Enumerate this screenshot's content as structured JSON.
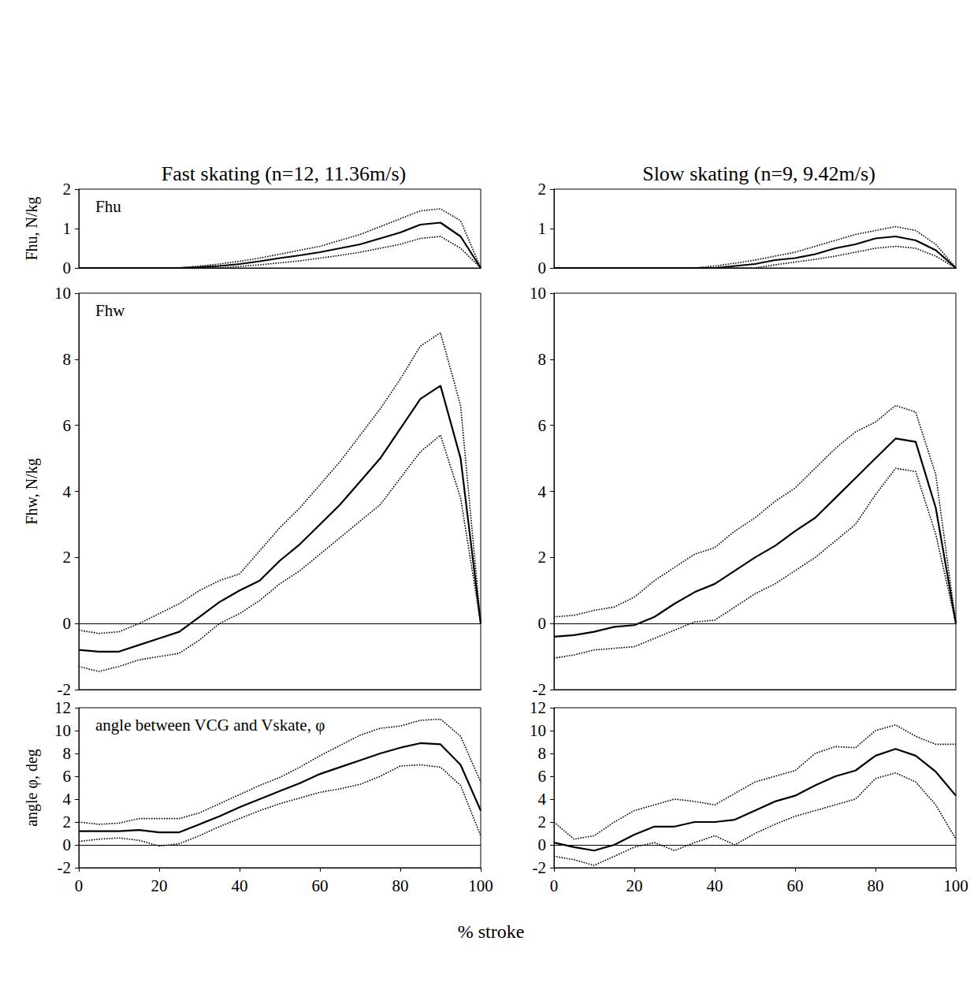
{
  "xlabel": "% stroke",
  "chart_data": [
    {
      "type": "line",
      "subtitle": "Fast skating (n=12, 11.36m/s)",
      "title": "Fhu",
      "ylabel": "Fhu, N/kg",
      "x": [
        0,
        5,
        10,
        15,
        20,
        25,
        30,
        35,
        40,
        45,
        50,
        55,
        60,
        65,
        70,
        75,
        80,
        85,
        90,
        95,
        100
      ],
      "xlim": [
        0,
        100
      ],
      "ylim": [
        0,
        2
      ],
      "yticks": [
        0,
        1,
        2
      ],
      "tick_labels": "y",
      "series": [
        {
          "color": "#000000",
          "line_style": "solid",
          "values": [
            0,
            0,
            0,
            0,
            0,
            0,
            0.02,
            0.05,
            0.1,
            0.17,
            0.25,
            0.32,
            0.4,
            0.5,
            0.6,
            0.75,
            0.9,
            1.1,
            1.15,
            0.8,
            0
          ]
        },
        {
          "color": "#000000",
          "line_style": "dotted",
          "values": [
            0,
            0,
            0,
            0,
            0,
            0,
            0.05,
            0.1,
            0.17,
            0.25,
            0.35,
            0.45,
            0.55,
            0.7,
            0.85,
            1.05,
            1.25,
            1.45,
            1.5,
            1.2,
            0
          ]
        },
        {
          "color": "#000000",
          "line_style": "dotted",
          "values": [
            0,
            0,
            0,
            0,
            0,
            0,
            0,
            0,
            0.04,
            0.08,
            0.13,
            0.18,
            0.25,
            0.32,
            0.4,
            0.5,
            0.6,
            0.75,
            0.8,
            0.5,
            0
          ]
        }
      ]
    },
    {
      "type": "line",
      "title": "Fhw",
      "ylabel": "Fhw, N/kg",
      "x": [
        0,
        5,
        10,
        15,
        20,
        25,
        30,
        35,
        40,
        45,
        50,
        55,
        60,
        65,
        70,
        75,
        80,
        85,
        90,
        95,
        100
      ],
      "xlim": [
        0,
        100
      ],
      "ylim": [
        -2,
        10
      ],
      "yticks": [
        -2,
        0,
        2,
        4,
        6,
        8,
        10
      ],
      "tick_labels": "y",
      "series": [
        {
          "color": "#000000",
          "line_style": "solid",
          "values": [
            -0.8,
            -0.85,
            -0.85,
            -0.65,
            -0.45,
            -0.25,
            0.2,
            0.65,
            1.0,
            1.3,
            1.9,
            2.4,
            3.0,
            3.6,
            4.3,
            5.0,
            5.9,
            6.8,
            7.2,
            5.0,
            0
          ]
        },
        {
          "color": "#000000",
          "line_style": "dotted",
          "values": [
            -0.2,
            -0.3,
            -0.25,
            0,
            0.3,
            0.6,
            1.0,
            1.3,
            1.5,
            2.2,
            2.9,
            3.5,
            4.2,
            4.9,
            5.7,
            6.5,
            7.4,
            8.4,
            8.8,
            6.6,
            0
          ]
        },
        {
          "color": "#000000",
          "line_style": "dotted",
          "values": [
            -1.3,
            -1.45,
            -1.3,
            -1.1,
            -1.0,
            -0.9,
            -0.5,
            0,
            0.3,
            0.7,
            1.2,
            1.6,
            2.1,
            2.6,
            3.1,
            3.6,
            4.4,
            5.2,
            5.7,
            3.8,
            0
          ]
        }
      ]
    },
    {
      "type": "line",
      "title": "angle between VCG and Vskate, φ",
      "ylabel": "angle φ, deg",
      "x": [
        0,
        5,
        10,
        15,
        20,
        25,
        30,
        35,
        40,
        45,
        50,
        55,
        60,
        65,
        70,
        75,
        80,
        85,
        90,
        95,
        100
      ],
      "xlim": [
        0,
        100
      ],
      "xticks": [
        0,
        20,
        40,
        60,
        80,
        100
      ],
      "ylim": [
        -2,
        12
      ],
      "yticks": [
        -2,
        0,
        2,
        4,
        6,
        8,
        10,
        12
      ],
      "series": [
        {
          "color": "#000000",
          "line_style": "solid",
          "values": [
            1.2,
            1.2,
            1.2,
            1.3,
            1.1,
            1.1,
            1.8,
            2.5,
            3.3,
            4.0,
            4.7,
            5.4,
            6.2,
            6.8,
            7.4,
            8.0,
            8.5,
            8.9,
            8.8,
            7.0,
            3.0
          ]
        },
        {
          "color": "#000000",
          "line_style": "dotted",
          "values": [
            2.0,
            1.8,
            1.9,
            2.3,
            2.3,
            2.3,
            2.8,
            3.6,
            4.4,
            5.2,
            5.9,
            6.8,
            7.8,
            8.7,
            9.6,
            10.2,
            10.4,
            10.9,
            11.0,
            9.5,
            5.5
          ]
        },
        {
          "color": "#000000",
          "line_style": "dotted",
          "values": [
            0.3,
            0.5,
            0.6,
            0.4,
            -0.1,
            0.1,
            0.8,
            1.6,
            2.3,
            3.0,
            3.6,
            4.1,
            4.6,
            4.9,
            5.3,
            6.0,
            6.9,
            7.0,
            6.8,
            5.2,
            0.8
          ]
        }
      ]
    },
    {
      "type": "line",
      "subtitle": "Slow skating (n=9, 9.42m/s)",
      "x": [
        0,
        5,
        10,
        15,
        20,
        25,
        30,
        35,
        40,
        45,
        50,
        55,
        60,
        65,
        70,
        75,
        80,
        85,
        90,
        95,
        100
      ],
      "xlim": [
        0,
        100
      ],
      "ylim": [
        0,
        2
      ],
      "yticks": [
        0,
        1,
        2
      ],
      "tick_labels": "y",
      "series": [
        {
          "color": "#000000",
          "line_style": "solid",
          "values": [
            0,
            0,
            0,
            0,
            0,
            0,
            0,
            0,
            0,
            0.05,
            0.1,
            0.2,
            0.25,
            0.35,
            0.5,
            0.6,
            0.75,
            0.8,
            0.7,
            0.45,
            0
          ]
        },
        {
          "color": "#000000",
          "line_style": "dotted",
          "values": [
            0,
            0,
            0,
            0,
            0,
            0,
            0,
            0,
            0.05,
            0.12,
            0.2,
            0.3,
            0.4,
            0.55,
            0.7,
            0.85,
            0.95,
            1.05,
            0.95,
            0.6,
            0
          ]
        },
        {
          "color": "#000000",
          "line_style": "dotted",
          "values": [
            0,
            0,
            0,
            0,
            0,
            0,
            0,
            0,
            0,
            0,
            0,
            0.08,
            0.15,
            0.22,
            0.3,
            0.4,
            0.5,
            0.55,
            0.5,
            0.3,
            0
          ]
        }
      ]
    },
    {
      "type": "line",
      "x": [
        0,
        5,
        10,
        15,
        20,
        25,
        30,
        35,
        40,
        45,
        50,
        55,
        60,
        65,
        70,
        75,
        80,
        85,
        90,
        95,
        100
      ],
      "xlim": [
        0,
        100
      ],
      "ylim": [
        -2,
        10
      ],
      "yticks": [
        -2,
        0,
        2,
        4,
        6,
        8,
        10
      ],
      "tick_labels": "y",
      "series": [
        {
          "color": "#000000",
          "line_style": "solid",
          "values": [
            -0.4,
            -0.35,
            -0.25,
            -0.1,
            -0.05,
            0.2,
            0.6,
            0.95,
            1.2,
            1.6,
            2.0,
            2.35,
            2.8,
            3.2,
            3.8,
            4.4,
            5.0,
            5.6,
            5.5,
            3.5,
            0
          ]
        },
        {
          "color": "#000000",
          "line_style": "dotted",
          "values": [
            0.2,
            0.25,
            0.4,
            0.5,
            0.8,
            1.3,
            1.7,
            2.1,
            2.3,
            2.8,
            3.2,
            3.7,
            4.1,
            4.7,
            5.3,
            5.8,
            6.1,
            6.6,
            6.4,
            4.5,
            0
          ]
        },
        {
          "color": "#000000",
          "line_style": "dotted",
          "values": [
            -1.05,
            -0.95,
            -0.8,
            -0.75,
            -0.7,
            -0.45,
            -0.2,
            0.05,
            0.1,
            0.5,
            0.9,
            1.2,
            1.6,
            2.0,
            2.5,
            3.0,
            3.9,
            4.7,
            4.6,
            2.7,
            0
          ]
        }
      ]
    },
    {
      "type": "line",
      "x": [
        0,
        5,
        10,
        15,
        20,
        25,
        30,
        35,
        40,
        45,
        50,
        55,
        60,
        65,
        70,
        75,
        80,
        85,
        90,
        95,
        100
      ],
      "xlim": [
        0,
        100
      ],
      "xticks": [
        0,
        20,
        40,
        60,
        80,
        100
      ],
      "ylim": [
        -2,
        12
      ],
      "yticks": [
        -2,
        0,
        2,
        4,
        6,
        8,
        10,
        12
      ],
      "series": [
        {
          "color": "#000000",
          "line_style": "solid",
          "values": [
            0.2,
            -0.2,
            -0.5,
            0,
            0.9,
            1.6,
            1.6,
            2.0,
            2.0,
            2.2,
            3.0,
            3.8,
            4.3,
            5.2,
            6.0,
            6.5,
            7.8,
            8.4,
            7.8,
            6.4,
            4.3
          ]
        },
        {
          "color": "#000000",
          "line_style": "dotted",
          "values": [
            2.0,
            0.5,
            0.8,
            2.0,
            3.0,
            3.5,
            4.0,
            3.8,
            3.5,
            4.5,
            5.5,
            6.0,
            6.5,
            8.0,
            8.6,
            8.5,
            10.0,
            10.5,
            9.5,
            8.8,
            8.8
          ]
        },
        {
          "color": "#000000",
          "line_style": "dotted",
          "values": [
            -1.0,
            -1.3,
            -1.8,
            -1.0,
            -0.2,
            0.2,
            -0.5,
            0.2,
            0.8,
            0,
            1.0,
            1.8,
            2.5,
            3.0,
            3.5,
            4.0,
            5.8,
            6.3,
            5.5,
            3.5,
            0.5
          ]
        }
      ]
    }
  ]
}
